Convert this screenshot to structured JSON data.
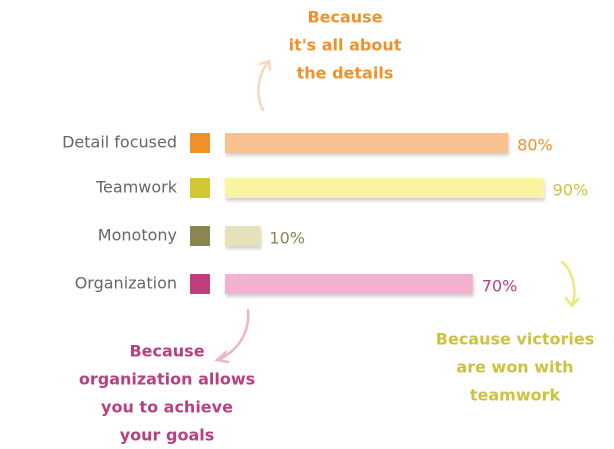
{
  "chart_data": {
    "type": "bar",
    "orientation": "horizontal",
    "categories": [
      "Detail focused",
      "Teamwork",
      "Monotony",
      "Organization"
    ],
    "values": [
      80,
      90,
      10,
      70
    ],
    "value_labels": [
      "80%",
      "90%",
      "10%",
      "70%"
    ],
    "xlim": [
      0,
      100
    ],
    "colors": [
      "#f9c18f",
      "#f8f4a2",
      "#e6e1ba",
      "#f3b1d0"
    ],
    "marker_colors": [
      "#ef9128",
      "#d3c733",
      "#8b8551",
      "#c0407d"
    ],
    "label_colors": [
      "#ef9128",
      "#cdc23f",
      "#8b8551",
      "#b9407f"
    ],
    "annotations": [
      {
        "lines": [
          "Because",
          "it's all about",
          "the details"
        ],
        "color": "#ef9128"
      },
      {
        "lines": [
          "Because",
          "organization allows",
          "you to achieve",
          "your goals"
        ],
        "color": "#b9407f"
      },
      {
        "lines": [
          "Because victories",
          "are won with",
          "teamwork"
        ],
        "color": "#cdc23f"
      }
    ]
  }
}
